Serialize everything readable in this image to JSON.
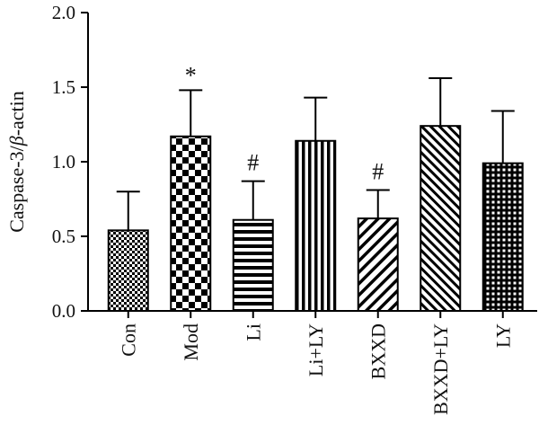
{
  "chart_data": {
    "type": "bar",
    "ylabel_prefix": "Caspase-3/",
    "ylabel_italic": "β",
    "ylabel_suffix": "-actin",
    "xlabel": "",
    "ylim": [
      0,
      2.0
    ],
    "yticks": [
      "0.0",
      "0.5",
      "1.0",
      "1.5",
      "2.0"
    ],
    "ytick_values": [
      0,
      0.5,
      1.0,
      1.5,
      2.0
    ],
    "categories": [
      "Con",
      "Mod",
      "Li",
      "Li+LY",
      "BXXD",
      "BXXD+LY",
      "LY"
    ],
    "values": [
      0.54,
      1.17,
      0.61,
      1.14,
      0.62,
      1.24,
      0.99
    ],
    "errors": [
      0.26,
      0.31,
      0.26,
      0.29,
      0.19,
      0.32,
      0.35
    ],
    "significance": [
      "",
      "*",
      "#",
      "",
      "#",
      "",
      ""
    ],
    "patterns": [
      "fine-checker",
      "coarse-checker",
      "horizontal-lines",
      "vertical-lines",
      "diagonal-lines",
      "diagonal-lines-dense",
      "grid"
    ],
    "bar_color": "#000000",
    "background": "#ffffff",
    "grid": false,
    "legend": "none"
  }
}
